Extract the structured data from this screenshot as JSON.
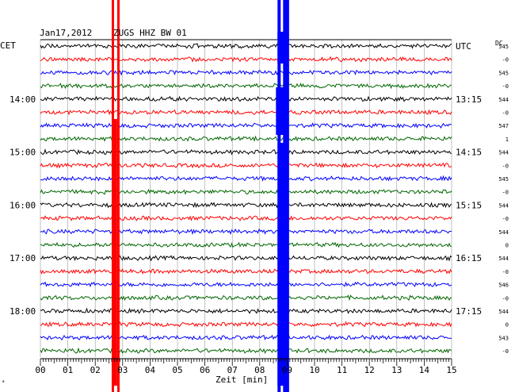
{
  "header": {
    "date": "Jan17,2012",
    "station": "ZUGS HHZ BW 01",
    "left_tz": "CET",
    "right_tz": "UTC",
    "dc_label": "DC"
  },
  "chart_data": {
    "type": "line",
    "title": "ZUGS HHZ BW 01",
    "xlabel": "Zeit [min]",
    "xlim": [
      0,
      15
    ],
    "x_ticks": [
      "00",
      "01",
      "02",
      "03",
      "04",
      "05",
      "06",
      "07",
      "08",
      "09",
      "10",
      "11",
      "12",
      "13",
      "14",
      "15"
    ],
    "trace_count": 24,
    "trace_colors": [
      "#000000",
      "#ff0000",
      "#0000ff",
      "#006600"
    ],
    "left_time_labels": [
      {
        "trace": 4,
        "text": "14:00"
      },
      {
        "trace": 8,
        "text": "15:00"
      },
      {
        "trace": 12,
        "text": "16:00"
      },
      {
        "trace": 16,
        "text": "17:00"
      },
      {
        "trace": 20,
        "text": "18:00"
      }
    ],
    "right_time_labels": [
      {
        "trace": 0,
        "text": "UTC"
      },
      {
        "trace": 4,
        "text": "13:15"
      },
      {
        "trace": 8,
        "text": "14:15"
      },
      {
        "trace": 12,
        "text": "15:15"
      },
      {
        "trace": 16,
        "text": "16:15"
      },
      {
        "trace": 20,
        "text": "17:15"
      }
    ],
    "dc_values": [
      "545",
      "-0",
      "545",
      "-0",
      "544",
      "-0",
      "547",
      "1",
      "544",
      "-0",
      "545",
      "-0",
      "544",
      "-0",
      "544",
      "0",
      "544",
      "-0",
      "546",
      "-0",
      "544",
      "0",
      "543",
      "-0"
    ],
    "events": [
      {
        "color": "#ff0000",
        "x_min": [
          2.6,
          2.8
        ]
      },
      {
        "color": "#0000ff",
        "x_min": [
          8.65,
          9.1
        ]
      }
    ]
  }
}
